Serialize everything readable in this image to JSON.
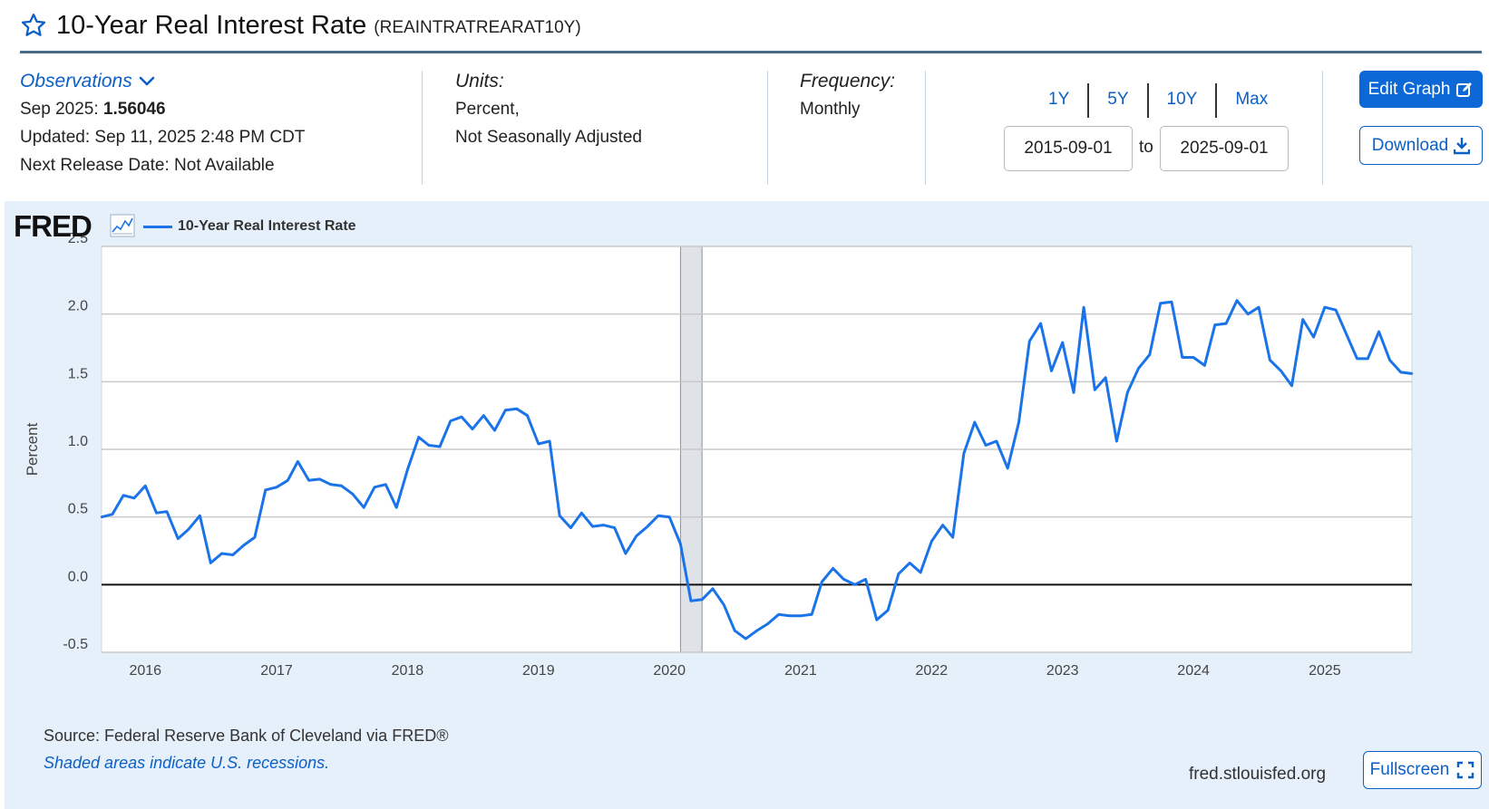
{
  "header": {
    "title": "10-Year Real Interest Rate",
    "series_id": "(REAINTRATREARAT10Y)"
  },
  "observations": {
    "label": "Observations",
    "latest_period": "Sep 2025:",
    "latest_value": "1.56046",
    "updated": "Updated: Sep 11, 2025 2:48 PM CDT",
    "next_release": "Next Release Date: Not Available"
  },
  "units": {
    "label": "Units:",
    "line1": "Percent,",
    "line2": "Not Seasonally Adjusted"
  },
  "frequency": {
    "label": "Frequency:",
    "value": "Monthly"
  },
  "range": {
    "buttons": [
      "1Y",
      "5Y",
      "10Y",
      "Max"
    ],
    "start": "2015-09-01",
    "to_label": "to",
    "end": "2025-09-01"
  },
  "actions": {
    "edit_graph": "Edit Graph",
    "download": "Download",
    "fullscreen": "Fullscreen"
  },
  "graph": {
    "logo": "FRED",
    "legend": "10-Year Real Interest Rate",
    "source": "Source: Federal Reserve Bank of Cleveland via FRED®",
    "shaded_note": "Shaded areas indicate U.S. recessions.",
    "domain": "fred.stlouisfed.org"
  },
  "colors": {
    "accent": "#0b68d6",
    "series": "#1a73e8",
    "panel": "#e6f0fa",
    "recession": "#dfe3e8"
  },
  "chart_data": {
    "type": "line",
    "ylabel": "Percent",
    "ylim": [
      -0.5,
      2.5
    ],
    "yticks": [
      "-0.5",
      "0.0",
      "0.5",
      "1.0",
      "1.5",
      "2.0",
      "2.5"
    ],
    "xlim": [
      "2015-09-01",
      "2025-09-01"
    ],
    "xticks": [
      "2016",
      "2017",
      "2018",
      "2019",
      "2020",
      "2021",
      "2022",
      "2023",
      "2024",
      "2025"
    ],
    "grid": true,
    "recessions": [
      [
        "2020-02-01",
        "2020-04-01"
      ]
    ],
    "series": [
      {
        "name": "10-Year Real Interest Rate",
        "x": [
          "2015-09",
          "2015-10",
          "2015-11",
          "2015-12",
          "2016-01",
          "2016-02",
          "2016-03",
          "2016-04",
          "2016-05",
          "2016-06",
          "2016-07",
          "2016-08",
          "2016-09",
          "2016-10",
          "2016-11",
          "2016-12",
          "2017-01",
          "2017-02",
          "2017-03",
          "2017-04",
          "2017-05",
          "2017-06",
          "2017-07",
          "2017-08",
          "2017-09",
          "2017-10",
          "2017-11",
          "2017-12",
          "2018-01",
          "2018-02",
          "2018-03",
          "2018-04",
          "2018-05",
          "2018-06",
          "2018-07",
          "2018-08",
          "2018-09",
          "2018-10",
          "2018-11",
          "2018-12",
          "2019-01",
          "2019-02",
          "2019-03",
          "2019-04",
          "2019-05",
          "2019-06",
          "2019-07",
          "2019-08",
          "2019-09",
          "2019-10",
          "2019-11",
          "2019-12",
          "2020-01",
          "2020-02",
          "2020-03",
          "2020-04",
          "2020-05",
          "2020-06",
          "2020-07",
          "2020-08",
          "2020-09",
          "2020-10",
          "2020-11",
          "2020-12",
          "2021-01",
          "2021-02",
          "2021-03",
          "2021-04",
          "2021-05",
          "2021-06",
          "2021-07",
          "2021-08",
          "2021-09",
          "2021-10",
          "2021-11",
          "2021-12",
          "2022-01",
          "2022-02",
          "2022-03",
          "2022-04",
          "2022-05",
          "2022-06",
          "2022-07",
          "2022-08",
          "2022-09",
          "2022-10",
          "2022-11",
          "2022-12",
          "2023-01",
          "2023-02",
          "2023-03",
          "2023-04",
          "2023-05",
          "2023-06",
          "2023-07",
          "2023-08",
          "2023-09",
          "2023-10",
          "2023-11",
          "2023-12",
          "2024-01",
          "2024-02",
          "2024-03",
          "2024-04",
          "2024-05",
          "2024-06",
          "2024-07",
          "2024-08",
          "2024-09",
          "2024-10",
          "2024-11",
          "2024-12",
          "2025-01",
          "2025-02",
          "2025-03",
          "2025-04",
          "2025-05",
          "2025-06",
          "2025-07",
          "2025-08",
          "2025-09"
        ],
        "values": [
          0.5,
          0.52,
          0.66,
          0.64,
          0.73,
          0.53,
          0.54,
          0.34,
          0.41,
          0.51,
          0.16,
          0.23,
          0.22,
          0.29,
          0.35,
          0.7,
          0.72,
          0.77,
          0.91,
          0.77,
          0.78,
          0.74,
          0.73,
          0.67,
          0.57,
          0.72,
          0.74,
          0.57,
          0.85,
          1.09,
          1.03,
          1.02,
          1.21,
          1.24,
          1.15,
          1.25,
          1.14,
          1.29,
          1.3,
          1.25,
          1.04,
          1.06,
          0.51,
          0.42,
          0.53,
          0.43,
          0.44,
          0.42,
          0.23,
          0.36,
          0.43,
          0.51,
          0.5,
          0.3,
          -0.12,
          -0.11,
          -0.03,
          -0.15,
          -0.34,
          -0.4,
          -0.34,
          -0.29,
          -0.22,
          -0.23,
          -0.23,
          -0.22,
          0.02,
          0.12,
          0.04,
          0.0,
          0.04,
          -0.26,
          -0.19,
          0.08,
          0.16,
          0.09,
          0.32,
          0.44,
          0.35,
          0.97,
          1.2,
          1.03,
          1.06,
          0.86,
          1.2,
          1.8,
          1.93,
          1.58,
          1.79,
          1.42,
          2.05,
          1.44,
          1.53,
          1.06,
          1.42,
          1.6,
          1.7,
          2.08,
          2.09,
          1.68,
          1.68,
          1.62,
          1.92,
          1.93,
          2.1,
          2.0,
          2.05,
          1.66,
          1.58,
          1.47,
          1.96,
          1.83,
          2.05,
          2.03,
          1.86,
          1.67,
          1.67,
          1.87,
          1.66,
          1.57,
          1.56
        ]
      }
    ]
  }
}
